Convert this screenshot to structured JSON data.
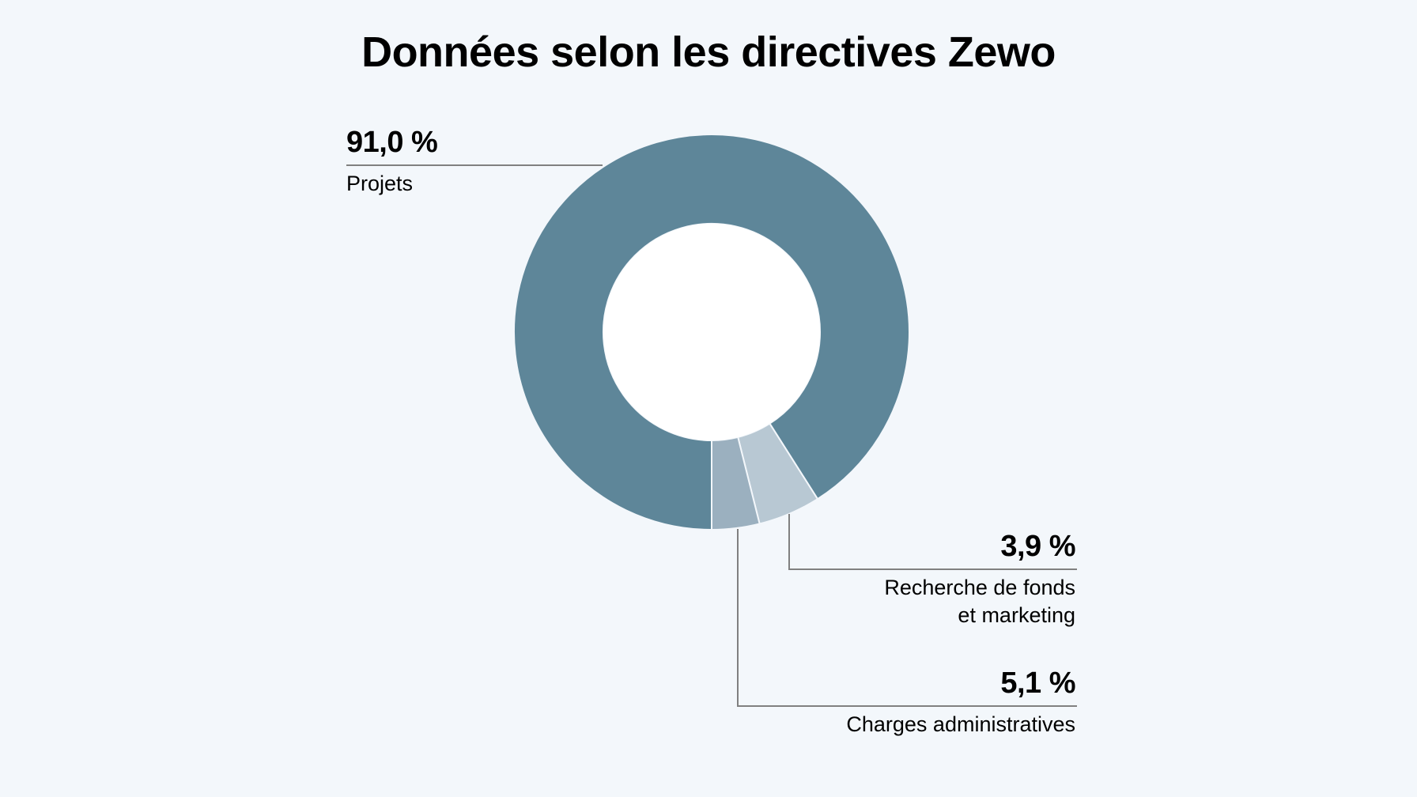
{
  "chart_data": {
    "type": "donut",
    "title": "Données selon les directives Zewo",
    "slices": [
      {
        "label": "Projets",
        "value": 91.0,
        "value_label": "91,0 %",
        "color": "#5e8699"
      },
      {
        "label": "Charges administratives",
        "value": 5.1,
        "value_label": "5,1 %",
        "color": "#b8c8d3"
      },
      {
        "label": "Recherche de fonds et marketing",
        "label_lines": [
          "Recherche de fonds",
          "et marketing"
        ],
        "value": 3.9,
        "value_label": "3,9 %",
        "color": "#9bb0bf"
      }
    ]
  },
  "colors": {
    "background": "#f3f7fb",
    "hole": "#ffffff",
    "leader_line": "#808080"
  }
}
